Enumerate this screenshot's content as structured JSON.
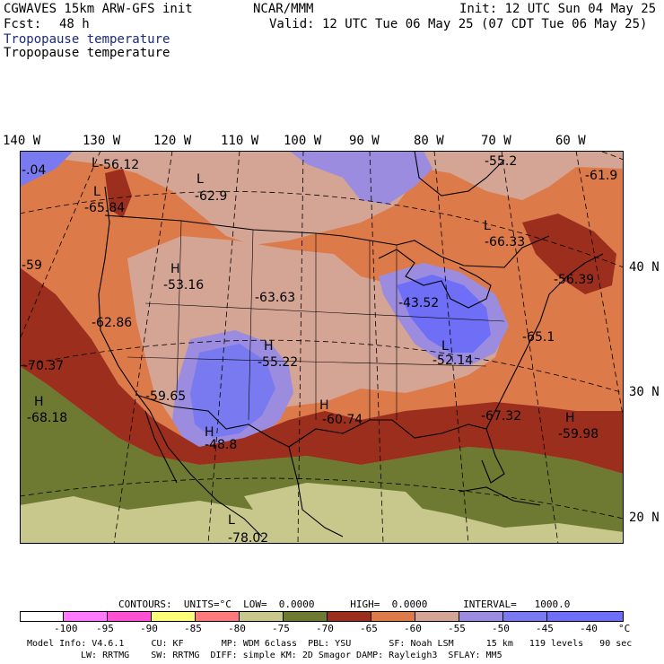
{
  "header": {
    "left_line1": "CGWAVES 15km ARW-GFS init",
    "left_line2_label": "Fcst:",
    "left_line2_value": "48 h",
    "center": "NCAR/MMM",
    "init": "Init: 12 UTC Sun 04 May 25",
    "valid": "Valid: 12 UTC Tue 06 May 25 (07 CDT Tue 06 May 25)",
    "field1": "Tropopause temperature",
    "field2": "Tropopause temperature"
  },
  "longitude_labels": [
    "140 W",
    "130 W",
    "120 W",
    "110 W",
    "100 W",
    "90 W",
    "80 W",
    "70 W",
    "60 W"
  ],
  "latitude_labels": [
    "40 N",
    "30 N",
    "20 N"
  ],
  "map_labels": [
    {
      "letter": "L",
      "value": "-56.12"
    },
    {
      "letter": "",
      "value": "-55.2"
    },
    {
      "letter": "L",
      "value": "-62.9"
    },
    {
      "letter": "L",
      "value": "-65.84"
    },
    {
      "letter": "",
      "value": "-61.9"
    },
    {
      "letter": "L",
      "value": "-66.33"
    },
    {
      "letter": "H",
      "value": "-53.16"
    },
    {
      "letter": "",
      "value": "-63.63"
    },
    {
      "letter": "",
      "value": "-43.52"
    },
    {
      "letter": "",
      "value": "-56.39"
    },
    {
      "letter": "",
      "value": "-62.86"
    },
    {
      "letter": "",
      "value": "-65.1"
    },
    {
      "letter": "",
      "value": "-70.37"
    },
    {
      "letter": "H",
      "value": "-55.22"
    },
    {
      "letter": "L",
      "value": "-52.14"
    },
    {
      "letter": "",
      "value": "-59.65"
    },
    {
      "letter": "H",
      "value": "-68.18"
    },
    {
      "letter": "H",
      "value": "-60.74"
    },
    {
      "letter": "",
      "value": "-67.32"
    },
    {
      "letter": "H",
      "value": "-59.98"
    },
    {
      "letter": "H",
      "value": "-48.8"
    },
    {
      "letter": "L",
      "value": "-78.02"
    },
    {
      "letter": "",
      "value": "-59"
    },
    {
      "letter": "",
      "value": "-.04"
    }
  ],
  "contours": {
    "text": "CONTOURS:  UNITS=°C  LOW=  0.0000      HIGH=  0.0000      INTERVAL=   1000.0"
  },
  "colorbar": {
    "colors": [
      "#ffffff",
      "#ff7aff",
      "#ff4fd2",
      "#ffff7a",
      "#ff7a7a",
      "#c8c88c",
      "#6e7a32",
      "#9c2e1e",
      "#dc7a4a",
      "#d4a494",
      "#9c8ce0",
      "#7a7af0",
      "#6e6ef6"
    ],
    "ticks": [
      "-100",
      "-95",
      "-90",
      "-85",
      "-80",
      "-75",
      "-70",
      "-65",
      "-60",
      "-55",
      "-50",
      "-45",
      "-40",
      "°C"
    ]
  },
  "model_info": {
    "line1": "Model Info: V4.6.1     CU: KF       MP: WDM 6class  PBL: YSU       SF: Noah LSM      15 km   119 levels   90 sec",
    "line2": "LW: RRTMG    SW: RRTMG  DIFF: simple KM: 2D Smagor DAMP: Rayleigh3  SFLAY: MM5"
  }
}
